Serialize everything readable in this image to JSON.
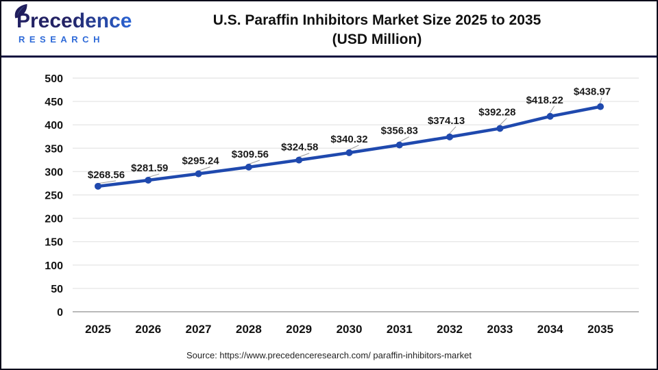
{
  "header": {
    "logo": {
      "line1": "Precedence",
      "line2": "RESEARCH"
    },
    "title_line1": "U.S. Paraffin Inhibitors Market Size 2025 to 2035",
    "title_line2": "(USD Million)"
  },
  "chart_data": {
    "type": "line",
    "title": "U.S. Paraffin Inhibitors Market Size 2025 to 2035 (USD Million)",
    "categories": [
      "2025",
      "2026",
      "2027",
      "2028",
      "2029",
      "2030",
      "2031",
      "2032",
      "2033",
      "2034",
      "2035"
    ],
    "series": [
      {
        "name": "U.S. Paraffin Inhibitors Market Size (USD Million)",
        "values": [
          268.56,
          281.59,
          295.24,
          309.56,
          324.58,
          340.32,
          356.83,
          374.13,
          392.28,
          418.22,
          438.97
        ]
      }
    ],
    "value_labels": [
      "$268.56",
      "$281.59",
      "$295.24",
      "$309.56",
      "$324.58",
      "$340.32",
      "$356.83",
      "$374.13",
      "$392.28",
      "$418.22",
      "$438.97"
    ],
    "xlabel": "",
    "ylabel": "",
    "ylim": [
      0,
      500
    ],
    "yticks": [
      0,
      50,
      100,
      150,
      200,
      250,
      300,
      350,
      400,
      450,
      500
    ],
    "grid": true,
    "legend_position": "none",
    "colors": {
      "line": "#1f49ae",
      "marker": "#1f49ae",
      "gridline": "#e7e7e7",
      "zero_line": "#b9b9b9",
      "tick_text": "#111111",
      "value_text": "#1a1a1a",
      "leader_line": "#999999"
    }
  },
  "footer": {
    "source": "Source: https://www.precedenceresearch.com/ paraffin-inhibitors-market"
  }
}
